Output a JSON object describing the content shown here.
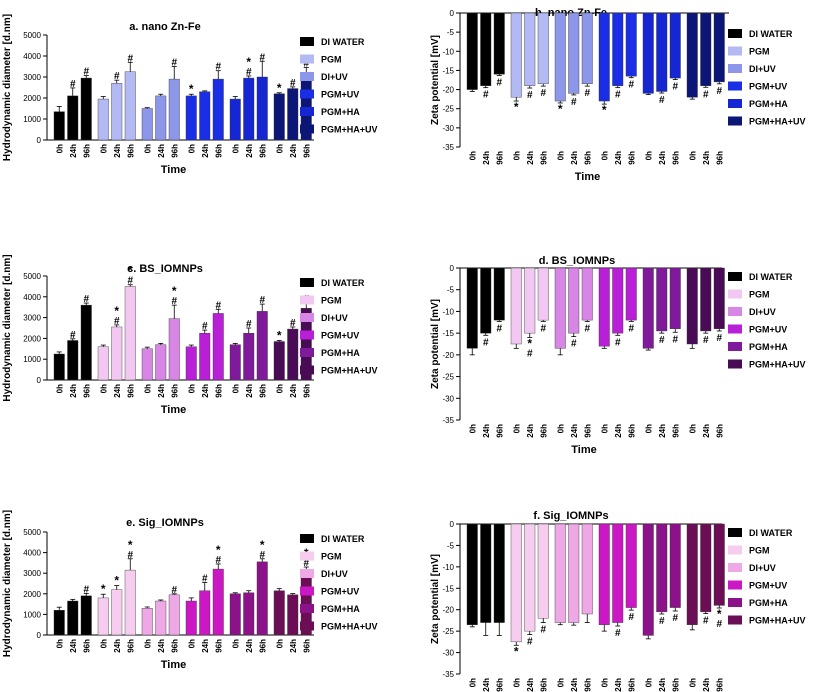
{
  "colors": {
    "zn": [
      "#000000",
      "#b3b9f2",
      "#8d97ea",
      "#1a2ee6",
      "#1526d2",
      "#0c1677"
    ],
    "bs": [
      "#000000",
      "#f2c8f2",
      "#d886e6",
      "#b91fd6",
      "#7f1b9a",
      "#4a0b56"
    ],
    "sig": [
      "#000000",
      "#f6cdee",
      "#eea8e6",
      "#cc18c4",
      "#8c1289",
      "#6b0e55"
    ]
  },
  "chart_data": [
    {
      "id": "a",
      "type": "bar",
      "title": "a. nano Zn-Fe",
      "xlabel": "Time",
      "ylabel": "Hydrodynamic diameter [d.nm]",
      "ylim": [
        0,
        5000
      ],
      "yticks": [
        0,
        1000,
        2000,
        3000,
        4000,
        5000
      ],
      "categories": [
        "0h",
        "24h",
        "96h"
      ],
      "palette": "zn",
      "series": [
        {
          "name": "DI WATER",
          "values": [
            1350,
            2100,
            2950
          ],
          "errors": [
            250,
            380,
            120
          ],
          "marks": [
            "",
            "#",
            "#"
          ]
        },
        {
          "name": "PGM",
          "values": [
            1950,
            2700,
            3250
          ],
          "errors": [
            120,
            150,
            450
          ],
          "marks": [
            "",
            "#",
            "#"
          ]
        },
        {
          "name": "DI+UV",
          "values": [
            1500,
            2100,
            2900
          ],
          "errors": [
            40,
            80,
            600
          ],
          "marks": [
            "",
            "",
            "#"
          ]
        },
        {
          "name": "PGM+UV",
          "values": [
            2100,
            2300,
            2900
          ],
          "errors": [
            80,
            40,
            400
          ],
          "marks": [
            "*",
            "",
            "#"
          ]
        },
        {
          "name": "PGM+HA",
          "values": [
            1950,
            2950,
            3000
          ],
          "errors": [
            120,
            100,
            750
          ],
          "marks": [
            "",
            "#*",
            "#"
          ]
        },
        {
          "name": "PGM+HA+UV",
          "values": [
            2200,
            2450,
            3100
          ],
          "errors": [
            50,
            80,
            350
          ],
          "marks": [
            "*",
            "#",
            "#"
          ]
        }
      ]
    },
    {
      "id": "b",
      "type": "bar",
      "title": "b. nano Zn-Fe",
      "xlabel": "Time",
      "ylabel": "Zeta potential [mV]",
      "ylim": [
        -35,
        0
      ],
      "yticks": [
        0,
        -5,
        -10,
        -15,
        -20,
        -25,
        -30,
        -35
      ],
      "categories": [
        "0h",
        "24h",
        "96h"
      ],
      "palette": "zn",
      "series": [
        {
          "name": "DI WATER",
          "values": [
            -20,
            -19,
            -16
          ],
          "errors": [
            0.5,
            0.5,
            0.3
          ],
          "marks": [
            "",
            "#",
            "#"
          ]
        },
        {
          "name": "PGM",
          "values": [
            -22,
            -19,
            -18.5
          ],
          "errors": [
            1.0,
            0.6,
            0.6
          ],
          "marks": [
            "*",
            "#",
            "#"
          ]
        },
        {
          "name": "DI+UV",
          "values": [
            -23,
            -21,
            -18.5
          ],
          "errors": [
            0.5,
            0.4,
            0.6
          ],
          "marks": [
            "*",
            "#",
            "#"
          ]
        },
        {
          "name": "PGM+UV",
          "values": [
            -23,
            -19,
            -16.5
          ],
          "errors": [
            0.8,
            0.5,
            0.4
          ],
          "marks": [
            "*",
            "#",
            "#"
          ]
        },
        {
          "name": "PGM+HA",
          "values": [
            -21,
            -20.5,
            -17
          ],
          "errors": [
            0.3,
            0.4,
            0.4
          ],
          "marks": [
            "",
            "#",
            "#"
          ]
        },
        {
          "name": "PGM+HA+UV",
          "values": [
            -22,
            -19,
            -18
          ],
          "errors": [
            0.5,
            0.4,
            0.5
          ],
          "marks": [
            "",
            "#",
            "#"
          ]
        }
      ]
    },
    {
      "id": "c",
      "type": "bar",
      "title": "c. BS_IOMNPs",
      "xlabel": "Time",
      "ylabel": "Hydrodynamic diameter [d.nm]",
      "ylim": [
        0,
        5000
      ],
      "yticks": [
        0,
        1000,
        2000,
        3000,
        4000,
        5000
      ],
      "categories": [
        "0h",
        "24h",
        "96h"
      ],
      "palette": "bs",
      "series": [
        {
          "name": "DI WATER",
          "values": [
            1250,
            1900,
            3600
          ],
          "errors": [
            100,
            80,
            100
          ],
          "marks": [
            "",
            "#",
            "#"
          ]
        },
        {
          "name": "PGM",
          "values": [
            1600,
            2550,
            4500
          ],
          "errors": [
            80,
            100,
            80
          ],
          "marks": [
            "",
            "#*",
            "#*"
          ]
        },
        {
          "name": "DI+UV",
          "values": [
            1500,
            1700,
            2950
          ],
          "errors": [
            80,
            60,
            650
          ],
          "marks": [
            "",
            "",
            "#*"
          ]
        },
        {
          "name": "PGM+UV",
          "values": [
            1600,
            2250,
            3200
          ],
          "errors": [
            80,
            150,
            200
          ],
          "marks": [
            "",
            "#",
            "#"
          ]
        },
        {
          "name": "PGM+HA",
          "values": [
            1700,
            2250,
            3300
          ],
          "errors": [
            60,
            250,
            350
          ],
          "marks": [
            "",
            "#",
            "#"
          ]
        },
        {
          "name": "PGM+HA+UV",
          "values": [
            1850,
            2450,
            3450
          ],
          "errors": [
            50,
            100,
            250
          ],
          "marks": [
            "*",
            "#",
            "#"
          ]
        }
      ]
    },
    {
      "id": "d",
      "type": "bar",
      "title": "d. BS_IOMNPs",
      "xlabel": "Time",
      "ylabel": "Zeta potential [mV]",
      "ylim": [
        -35,
        0
      ],
      "yticks": [
        0,
        -5,
        -10,
        -15,
        -20,
        -25,
        -30,
        -35
      ],
      "categories": [
        "0h",
        "24h",
        "96h"
      ],
      "palette": "bs",
      "series": [
        {
          "name": "DI WATER",
          "values": [
            -18.5,
            -15,
            -12
          ],
          "errors": [
            1.5,
            0.5,
            0.3
          ],
          "marks": [
            "",
            "#",
            "#"
          ]
        },
        {
          "name": "PGM",
          "values": [
            -17.5,
            -15,
            -12
          ],
          "errors": [
            1.0,
            1.0,
            0.3
          ],
          "marks": [
            "",
            "*#",
            "#"
          ]
        },
        {
          "name": "DI+UV",
          "values": [
            -18.5,
            -15,
            -12
          ],
          "errors": [
            1.5,
            0.8,
            0.3
          ],
          "marks": [
            "",
            "#",
            "#"
          ]
        },
        {
          "name": "PGM+UV",
          "values": [
            -18,
            -15,
            -12
          ],
          "errors": [
            0.5,
            0.5,
            0.3
          ],
          "marks": [
            "",
            "#",
            "#"
          ]
        },
        {
          "name": "PGM+HA",
          "values": [
            -18.5,
            -14.5,
            -14
          ],
          "errors": [
            0.4,
            0.5,
            0.8
          ],
          "marks": [
            "",
            "#",
            "#"
          ]
        },
        {
          "name": "PGM+HA+UV",
          "values": [
            -17.5,
            -14.5,
            -14
          ],
          "errors": [
            1.0,
            0.5,
            0.5
          ],
          "marks": [
            "",
            "#",
            "#"
          ]
        }
      ]
    },
    {
      "id": "e",
      "type": "bar",
      "title": "e. Sig_IOMNPs",
      "xlabel": "Time",
      "ylabel": "Hydrodynamic diameter [d.nm]",
      "ylim": [
        0,
        5000
      ],
      "yticks": [
        0,
        1000,
        2000,
        3000,
        4000,
        5000
      ],
      "categories": [
        "0h",
        "24h",
        "96h"
      ],
      "palette": "sig",
      "series": [
        {
          "name": "DI WATER",
          "values": [
            1200,
            1650,
            1900
          ],
          "errors": [
            150,
            80,
            120
          ],
          "marks": [
            "",
            "",
            "#"
          ]
        },
        {
          "name": "PGM",
          "values": [
            1800,
            2200,
            3150
          ],
          "errors": [
            180,
            200,
            550
          ],
          "marks": [
            "*",
            "*",
            "#*"
          ]
        },
        {
          "name": "DI+UV",
          "values": [
            1300,
            1650,
            1950
          ],
          "errors": [
            60,
            50,
            50
          ],
          "marks": [
            "",
            "",
            "#"
          ]
        },
        {
          "name": "PGM+UV",
          "values": [
            1650,
            2150,
            3200
          ],
          "errors": [
            150,
            400,
            250
          ],
          "marks": [
            "",
            "#",
            "#*"
          ]
        },
        {
          "name": "PGM+HA",
          "values": [
            2000,
            2050,
            3550
          ],
          "errors": [
            50,
            100,
            150
          ],
          "marks": [
            "",
            "",
            "#*"
          ]
        },
        {
          "name": "PGM+HA+UV",
          "values": [
            2150,
            1950,
            3150
          ],
          "errors": [
            100,
            60,
            150
          ],
          "marks": [
            "",
            "",
            "#*"
          ]
        }
      ]
    },
    {
      "id": "f",
      "type": "bar",
      "title": "f. Sig_IOMNPs",
      "xlabel": "Time",
      "ylabel": "Zeta potential [mV]",
      "ylim": [
        -35,
        0
      ],
      "yticks": [
        0,
        -5,
        -10,
        -15,
        -20,
        -25,
        -30,
        -35
      ],
      "categories": [
        "0h",
        "24h",
        "96h"
      ],
      "palette": "sig",
      "series": [
        {
          "name": "DI WATER",
          "values": [
            -23.5,
            -23,
            -23
          ],
          "errors": [
            0.5,
            3.0,
            3.0
          ],
          "marks": [
            "",
            "",
            ""
          ]
        },
        {
          "name": "PGM",
          "values": [
            -27.5,
            -25,
            -22
          ],
          "errors": [
            0.8,
            0.8,
            1.0
          ],
          "marks": [
            "*",
            "#",
            "#"
          ]
        },
        {
          "name": "DI+UV",
          "values": [
            -23,
            -23,
            -21
          ],
          "errors": [
            0.5,
            0.6,
            2.0
          ],
          "marks": [
            "",
            "",
            ""
          ]
        },
        {
          "name": "PGM+UV",
          "values": [
            -23.5,
            -23,
            -19.5
          ],
          "errors": [
            1.5,
            0.8,
            0.6
          ],
          "marks": [
            "",
            "#",
            "#"
          ]
        },
        {
          "name": "PGM+HA",
          "values": [
            -26,
            -20.5,
            -19.5
          ],
          "errors": [
            0.8,
            0.5,
            0.8
          ],
          "marks": [
            "",
            "#",
            "#"
          ]
        },
        {
          "name": "PGM+HA+UV",
          "values": [
            -23.5,
            -20.5,
            -19
          ],
          "errors": [
            1.2,
            0.4,
            0.6
          ],
          "marks": [
            "",
            "#",
            "*#"
          ]
        }
      ]
    }
  ]
}
